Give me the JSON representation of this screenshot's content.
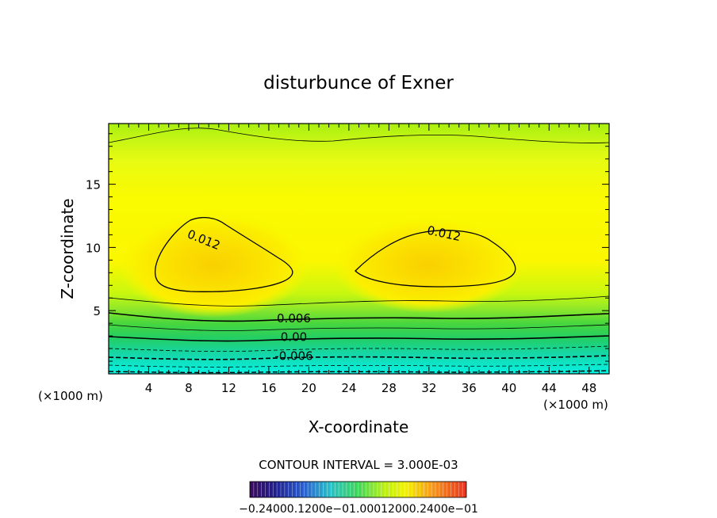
{
  "chart_data": {
    "type": "heatmap",
    "title": "disturbunce of Exner",
    "xlabel": "X-coordinate",
    "ylabel": "Z-coordinate",
    "x_unit": "(×1000 m)",
    "y_unit": "(×1000 m)",
    "xlim": [
      0,
      50
    ],
    "ylim": [
      0,
      19.8
    ],
    "x_ticks": [
      "4",
      "8",
      "12",
      "16",
      "20",
      "24",
      "28",
      "32",
      "36",
      "40",
      "44",
      "48"
    ],
    "y_ticks": [
      "5",
      "10",
      "15"
    ],
    "x_tick_values": [
      4,
      8,
      12,
      16,
      20,
      24,
      28,
      32,
      36,
      40,
      44,
      48
    ],
    "y_tick_values": [
      5,
      10,
      15
    ],
    "contour_labels": [
      {
        "text": "0.012",
        "x": 9.5,
        "z": 10.6
      },
      {
        "text": "0.012",
        "x": 33.5,
        "z": 11.1
      },
      {
        "text": "0.006",
        "x": 18.5,
        "z": 4.4
      },
      {
        "text": "0.00",
        "x": 18.5,
        "z": 2.9
      },
      {
        "text": "-0.006",
        "x": 18.5,
        "z": 1.4
      }
    ],
    "contour_interval_text": "CONTOUR INTERVAL = 3.000E-03",
    "colorbar_labels": [
      "-0.24000e-01",
      "0.12000e-01",
      "0.24000e-01"
    ],
    "colorbar_label_text": "−0.24000.1200e−01.00012000.2400e−01",
    "grid": false,
    "legend": "bottom-center colorbar"
  }
}
